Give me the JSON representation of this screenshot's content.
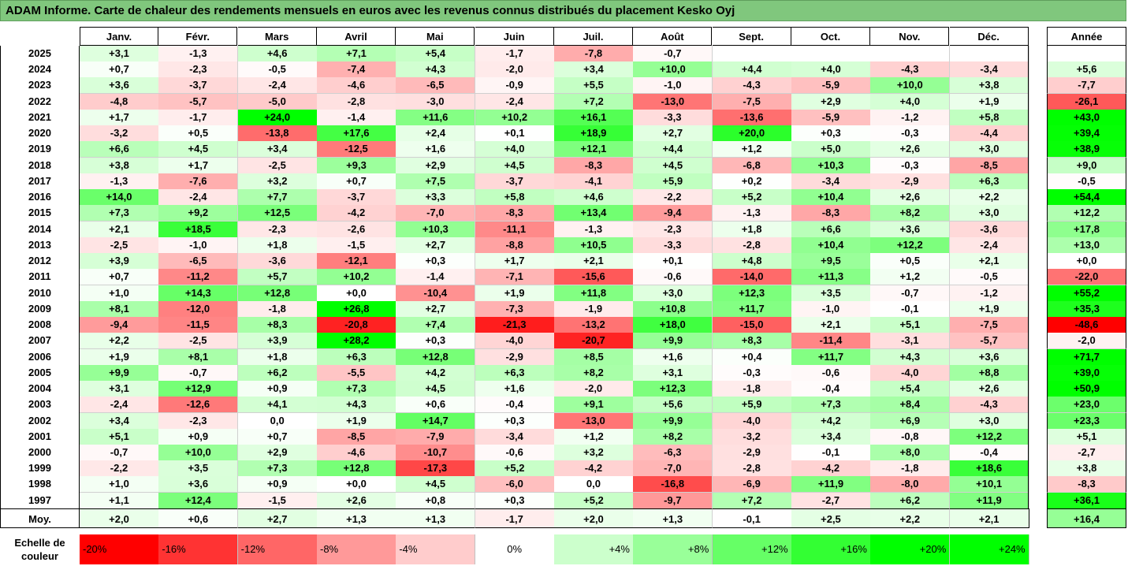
{
  "title": "ADAM Informe. Carte de chaleur des rendements mensuels en euros avec les revenus connus distribués du placement Kesko Oyj",
  "colors": {
    "title_bg": "#80c77d",
    "neg": "#ff0000",
    "pos": "#00ff00",
    "neutral": "#ffffff"
  },
  "chart_data": {
    "type": "heatmap",
    "title": "ADAM Informe. Carte de chaleur des rendements mensuels en euros avec les revenus connus distribués du placement Kesko Oyj",
    "columns": [
      "Janv.",
      "Févr.",
      "Mars",
      "Avril",
      "Mai",
      "Juin",
      "Juil.",
      "Août",
      "Sept.",
      "Oct.",
      "Nov.",
      "Déc."
    ],
    "annual_label": "Année",
    "rows": [
      {
        "year": "2025",
        "values": [
          "+3,1",
          "-1,3",
          "+4,6",
          "+7,1",
          "+5,4",
          "-1,7",
          "-7,8",
          "-0,7",
          "",
          "",
          "",
          ""
        ],
        "annual": ""
      },
      {
        "year": "2024",
        "values": [
          "+0,7",
          "-2,3",
          "-0,5",
          "-7,4",
          "+4,3",
          "-2,0",
          "+3,4",
          "+10,0",
          "+4,4",
          "+4,0",
          "-4,3",
          "-3,4"
        ],
        "annual": "+5,6"
      },
      {
        "year": "2023",
        "values": [
          "+3,6",
          "-3,7",
          "-2,4",
          "-4,6",
          "-6,5",
          "-0,9",
          "+5,5",
          "-1,0",
          "-4,3",
          "-5,9",
          "+10,0",
          "+3,8"
        ],
        "annual": "-7,7"
      },
      {
        "year": "2022",
        "values": [
          "-4,8",
          "-5,7",
          "-5,0",
          "-2,8",
          "-3,0",
          "-2,4",
          "+7,2",
          "-13,0",
          "-7,5",
          "+2,9",
          "+4,0",
          "+1,9"
        ],
        "annual": "-26,1"
      },
      {
        "year": "2021",
        "values": [
          "+1,7",
          "-1,7",
          "+24,0",
          "-1,4",
          "+11,6",
          "+10,2",
          "+16,1",
          "-3,3",
          "-13,6",
          "-5,9",
          "-1,2",
          "+5,8"
        ],
        "annual": "+43,0"
      },
      {
        "year": "2020",
        "values": [
          "-3,2",
          "+0,5",
          "-13,8",
          "+17,6",
          "+2,4",
          "+0,1",
          "+18,9",
          "+2,7",
          "+20,0",
          "+0,3",
          "-0,3",
          "-4,4"
        ],
        "annual": "+39,4"
      },
      {
        "year": "2019",
        "values": [
          "+6,6",
          "+4,5",
          "+3,4",
          "-12,5",
          "+1,6",
          "+4,0",
          "+12,1",
          "+4,4",
          "+1,2",
          "+5,0",
          "+2,6",
          "+3,0"
        ],
        "annual": "+38,9"
      },
      {
        "year": "2018",
        "values": [
          "+3,8",
          "+1,7",
          "-2,5",
          "+9,3",
          "+2,9",
          "+4,5",
          "-8,3",
          "+4,5",
          "-6,8",
          "+10,3",
          "-0,3",
          "-8,5"
        ],
        "annual": "+9,0"
      },
      {
        "year": "2017",
        "values": [
          "-1,3",
          "-7,6",
          "+3,2",
          "+0,7",
          "+7,5",
          "-3,7",
          "-4,1",
          "+5,9",
          "+0,2",
          "-3,4",
          "-2,9",
          "+6,3"
        ],
        "annual": "-0,5"
      },
      {
        "year": "2016",
        "values": [
          "+14,0",
          "-2,4",
          "+7,7",
          "-3,7",
          "+3,3",
          "+5,8",
          "+4,6",
          "-2,2",
          "+5,2",
          "+10,4",
          "+2,6",
          "+2,2"
        ],
        "annual": "+54,4"
      },
      {
        "year": "2015",
        "values": [
          "+7,3",
          "+9,2",
          "+12,5",
          "-4,2",
          "-7,0",
          "-8,3",
          "+13,4",
          "-9,4",
          "-1,3",
          "-8,3",
          "+8,2",
          "+3,0"
        ],
        "annual": "+12,2"
      },
      {
        "year": "2014",
        "values": [
          "+2,1",
          "+18,5",
          "-2,3",
          "-2,6",
          "+10,3",
          "-11,1",
          "-1,3",
          "-2,3",
          "+1,8",
          "+6,6",
          "+3,6",
          "-3,6"
        ],
        "annual": "+17,8"
      },
      {
        "year": "2013",
        "values": [
          "-2,5",
          "-1,0",
          "+1,8",
          "-1,5",
          "+2,7",
          "-8,8",
          "+10,5",
          "-3,3",
          "-2,8",
          "+10,4",
          "+12,2",
          "-2,4"
        ],
        "annual": "+13,0"
      },
      {
        "year": "2012",
        "values": [
          "+3,9",
          "-6,5",
          "-3,6",
          "-12,1",
          "+0,3",
          "+1,7",
          "+2,1",
          "+0,1",
          "+4,8",
          "+9,5",
          "+0,5",
          "+2,1"
        ],
        "annual": "+0,0"
      },
      {
        "year": "2011",
        "values": [
          "+0,7",
          "-11,2",
          "+5,7",
          "+10,2",
          "-1,4",
          "-7,1",
          "-15,6",
          "-0,6",
          "-14,0",
          "+11,3",
          "+1,2",
          "-0,5"
        ],
        "annual": "-22,0"
      },
      {
        "year": "2010",
        "values": [
          "+1,0",
          "+14,3",
          "+12,8",
          "+0,0",
          "-10,4",
          "+1,9",
          "+11,8",
          "+3,0",
          "+12,3",
          "+3,5",
          "-0,7",
          "-1,2"
        ],
        "annual": "+55,2"
      },
      {
        "year": "2009",
        "values": [
          "+8,1",
          "-12,0",
          "-1,8",
          "+26,8",
          "+2,7",
          "-7,3",
          "-1,9",
          "+10,8",
          "+11,7",
          "-1,0",
          "-0,1",
          "+1,9"
        ],
        "annual": "+35,3"
      },
      {
        "year": "2008",
        "values": [
          "-9,4",
          "-11,5",
          "+8,3",
          "-20,8",
          "+7,4",
          "-21,3",
          "-13,2",
          "+18,0",
          "-15,0",
          "+2,1",
          "+5,1",
          "-7,5"
        ],
        "annual": "-48,6"
      },
      {
        "year": "2007",
        "values": [
          "+2,2",
          "-2,5",
          "+3,9",
          "+28,2",
          "+0,3",
          "-4,0",
          "-20,7",
          "+9,9",
          "+8,3",
          "-11,4",
          "-3,1",
          "-5,7"
        ],
        "annual": "-2,0"
      },
      {
        "year": "2006",
        "values": [
          "+1,9",
          "+8,1",
          "+1,8",
          "+6,3",
          "+12,8",
          "-2,9",
          "+8,5",
          "+1,6",
          "+0,4",
          "+11,7",
          "+4,3",
          "+3,6"
        ],
        "annual": "+71,7"
      },
      {
        "year": "2005",
        "values": [
          "+9,9",
          "-0,7",
          "+6,2",
          "-5,5",
          "+4,2",
          "+6,3",
          "+8,2",
          "+3,1",
          "-0,3",
          "-0,6",
          "-4,0",
          "+8,8"
        ],
        "annual": "+39,0"
      },
      {
        "year": "2004",
        "values": [
          "+3,1",
          "+12,9",
          "+0,9",
          "+7,3",
          "+4,5",
          "+1,6",
          "-2,0",
          "+12,3",
          "-1,8",
          "-0,4",
          "+5,4",
          "+2,6"
        ],
        "annual": "+50,9"
      },
      {
        "year": "2003",
        "values": [
          "-2,4",
          "-12,6",
          "+4,1",
          "+4,3",
          "+0,6",
          "-0,4",
          "+9,1",
          "+5,6",
          "+5,9",
          "+7,3",
          "+8,4",
          "-4,3"
        ],
        "annual": "+23,0"
      },
      {
        "year": "2002",
        "values": [
          "+3,4",
          "-2,3",
          "0,0",
          "+1,9",
          "+14,7",
          "+0,3",
          "-13,0",
          "+9,9",
          "-4,0",
          "+4,2",
          "+6,9",
          "+3,0"
        ],
        "annual": "+23,3"
      },
      {
        "year": "2001",
        "values": [
          "+5,1",
          "+0,9",
          "+0,7",
          "-8,5",
          "-7,9",
          "-3,4",
          "+1,2",
          "+8,2",
          "-3,2",
          "+3,4",
          "-0,8",
          "+12,2"
        ],
        "annual": "+5,1"
      },
      {
        "year": "2000",
        "values": [
          "-0,7",
          "+10,0",
          "+2,9",
          "-4,6",
          "-10,7",
          "-0,6",
          "+3,2",
          "-6,3",
          "-2,9",
          "-0,1",
          "+8,0",
          "-0,4"
        ],
        "annual": "-2,7"
      },
      {
        "year": "1999",
        "values": [
          "-2,2",
          "+3,5",
          "+7,3",
          "+12,8",
          "-17,3",
          "+5,2",
          "-4,2",
          "-7,0",
          "-2,8",
          "-4,2",
          "-1,8",
          "+18,6"
        ],
        "annual": "+3,8"
      },
      {
        "year": "1998",
        "values": [
          "+1,0",
          "+3,6",
          "+0,9",
          "+0,0",
          "+4,5",
          "-6,0",
          "0,0",
          "-16,8",
          "-6,9",
          "+11,9",
          "-8,0",
          "+10,1"
        ],
        "annual": "-8,3"
      },
      {
        "year": "1997",
        "values": [
          "+1,1",
          "+12,4",
          "-1,5",
          "+2,6",
          "+0,8",
          "+0,3",
          "+5,2",
          "-9,7",
          "+7,2",
          "-2,7",
          "+6,2",
          "+11,9"
        ],
        "annual": "+36,1"
      }
    ],
    "average": {
      "label": "Moy.",
      "values": [
        "+2,0",
        "+0,6",
        "+2,7",
        "+1,3",
        "+1,3",
        "-1,7",
        "+2,0",
        "+1,3",
        "-0,1",
        "+2,5",
        "+2,2",
        "+2,1"
      ],
      "annual": "+16,4"
    },
    "scale": {
      "label": "Echelle de couleur",
      "steps": [
        "-20%",
        "-16%",
        "-12%",
        "-8%",
        "-4%",
        "0%",
        "+4%",
        "+8%",
        "+12%",
        "+16%",
        "+20%",
        "+24%"
      ],
      "values": [
        -20,
        -16,
        -12,
        -8,
        -4,
        0,
        4,
        8,
        12,
        16,
        20,
        24
      ]
    }
  }
}
